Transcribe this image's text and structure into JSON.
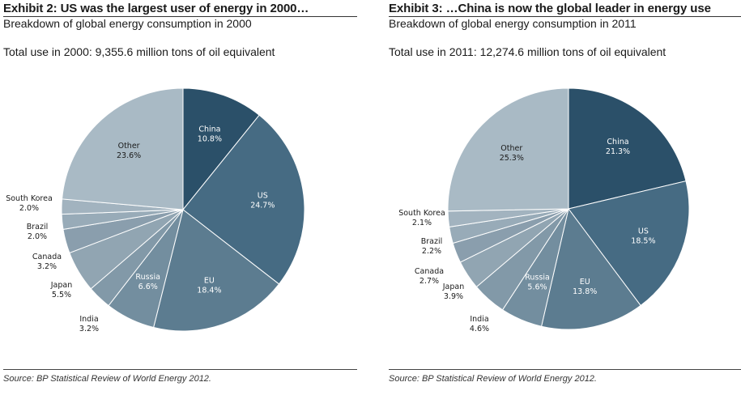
{
  "chart_data": [
    {
      "type": "pie",
      "title": "Exhibit 2: US was the largest user of energy in 2000…",
      "subtitle": "Breakdown of global energy consumption in 2000",
      "total_text": "Total use in 2000: 9,355.6 million tons of oil equivalent",
      "source": "Source: BP Statistical Review of World Energy 2012.",
      "slices": [
        {
          "label": "China",
          "value": 10.8,
          "value_text": "10.8%",
          "color": "#2b5069",
          "label_color": "#ffffff"
        },
        {
          "label": "US",
          "value": 24.7,
          "value_text": "24.7%",
          "color": "#466b83",
          "label_color": "#ffffff"
        },
        {
          "label": "EU",
          "value": 18.4,
          "value_text": "18.4%",
          "color": "#5c7c90",
          "label_color": "#ffffff"
        },
        {
          "label": "Russia",
          "value": 6.6,
          "value_text": "6.6%",
          "color": "#738e9f",
          "label_color": "#ffffff"
        },
        {
          "label": "India",
          "value": 3.2,
          "value_text": "3.2%",
          "color": "#8299a8",
          "label_color": "#1a1a1a"
        },
        {
          "label": "Japan",
          "value": 5.5,
          "value_text": "5.5%",
          "color": "#91a5b2",
          "label_color": "#1a1a1a"
        },
        {
          "label": "Canada",
          "value": 3.2,
          "value_text": "3.2%",
          "color": "#8a9ead",
          "label_color": "#1a1a1a"
        },
        {
          "label": "Brazil",
          "value": 2.0,
          "value_text": "2.0%",
          "color": "#98abb8",
          "label_color": "#1a1a1a"
        },
        {
          "label": "South Korea",
          "value": 2.0,
          "value_text": "2.0%",
          "color": "#a2b3bf",
          "label_color": "#1a1a1a"
        },
        {
          "label": "Other",
          "value": 23.6,
          "value_text": "23.6%",
          "color": "#a9bac5",
          "label_color": "#1a1a1a"
        }
      ]
    },
    {
      "type": "pie",
      "title": "Exhibit 3: …China is now the global leader in energy use",
      "subtitle": "Breakdown of global energy consumption in 2011",
      "total_text": "Total use in 2011: 12,274.6 million tons of oil equivalent",
      "source": "Source: BP Statistical Review of World Energy 2012.",
      "slices": [
        {
          "label": "China",
          "value": 21.3,
          "value_text": "21.3%",
          "color": "#2b5069",
          "label_color": "#ffffff"
        },
        {
          "label": "US",
          "value": 18.5,
          "value_text": "18.5%",
          "color": "#466b83",
          "label_color": "#ffffff"
        },
        {
          "label": "EU",
          "value": 13.8,
          "value_text": "13.8%",
          "color": "#5c7c90",
          "label_color": "#ffffff"
        },
        {
          "label": "Russia",
          "value": 5.6,
          "value_text": "5.6%",
          "color": "#738e9f",
          "label_color": "#ffffff"
        },
        {
          "label": "India",
          "value": 4.6,
          "value_text": "4.6%",
          "color": "#8299a8",
          "label_color": "#1a1a1a"
        },
        {
          "label": "Japan",
          "value": 3.9,
          "value_text": "3.9%",
          "color": "#91a5b2",
          "label_color": "#1a1a1a"
        },
        {
          "label": "Canada",
          "value": 2.7,
          "value_text": "2.7%",
          "color": "#8a9ead",
          "label_color": "#1a1a1a"
        },
        {
          "label": "Brazil",
          "value": 2.2,
          "value_text": "2.2%",
          "color": "#98abb8",
          "label_color": "#1a1a1a"
        },
        {
          "label": "South Korea",
          "value": 2.1,
          "value_text": "2.1%",
          "color": "#a2b3bf",
          "label_color": "#1a1a1a"
        },
        {
          "label": "Other",
          "value": 25.3,
          "value_text": "25.3%",
          "color": "#a9bac5",
          "label_color": "#1a1a1a"
        }
      ]
    }
  ]
}
